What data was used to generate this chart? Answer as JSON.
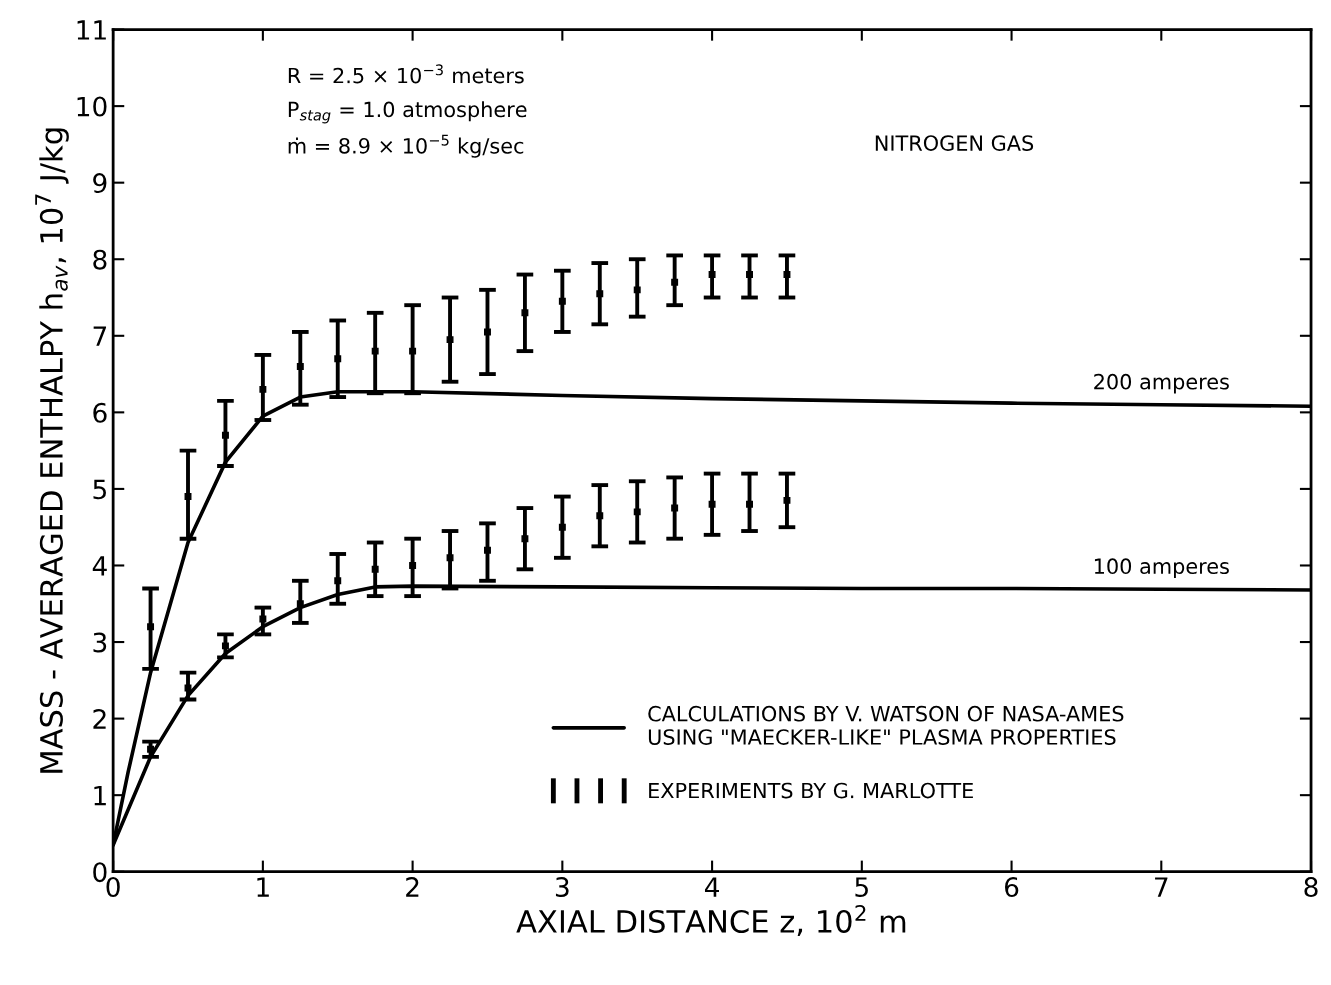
{
  "chart_data": {
    "type": "line",
    "xlabel": "AXIAL DISTANCE z, 10$^{2}$ m",
    "ylabel": "MASS - AVERAGED ENTHALPY h$_{av}$, 10$^{7}$ J/kg",
    "xlim": [
      0,
      8
    ],
    "xticks": [
      0,
      1,
      2,
      3,
      4,
      5,
      6,
      7,
      8
    ],
    "ylim": [
      0,
      11
    ],
    "yticks": [
      0,
      1,
      2,
      3,
      4,
      5,
      6,
      7,
      8,
      9,
      10,
      11
    ],
    "grid": false,
    "legend": "bottom right",
    "line_style": "solid",
    "annotations": [
      "R = 2.5 × 10$^{−3}$ meters",
      "P$_{stag}$ = 1.0 atmosphere",
      "ṁ = 8.9 × 10$^{−5}$ kg/sec",
      "NITROGEN GAS",
      {
        "text": "200 amperes",
        "x": 7,
        "y": 6.1
      },
      {
        "text": "100 amperes",
        "x": 7,
        "y": 3.69
      }
    ],
    "series": [
      {
        "type": "line",
        "name": "CALCULATIONS BY V. WATSON OF NASA-AMES\nUSING \"MAECKER-LIKE\" PLASMA PROPERTIES",
        "color": "#000000",
        "marker": "none",
        "x": [
          0,
          0.1,
          0.25,
          0.5,
          0.75,
          1.0,
          1.25,
          1.5,
          2,
          3,
          4,
          5,
          6,
          7,
          8
        ],
        "values": [
          0.35,
          1.3,
          2.6,
          4.3,
          5.35,
          5.95,
          6.2,
          6.27,
          6.27,
          6.22,
          6.18,
          6.15,
          6.12,
          6.1,
          6.08
        ]
      },
      {
        "type": "line",
        "color": "#000000",
        "marker": "none",
        "x": [
          0,
          0.25,
          0.5,
          0.75,
          1.0,
          1.25,
          1.5,
          1.75,
          2,
          3,
          4,
          5,
          6,
          7,
          8
        ],
        "values": [
          0.35,
          1.5,
          2.3,
          2.85,
          3.2,
          3.45,
          3.62,
          3.72,
          3.73,
          3.72,
          3.71,
          3.7,
          3.7,
          3.69,
          3.68
        ]
      },
      {
        "type": "scatter",
        "name": "EXPERIMENTS BY G. MARLOTTE",
        "color": "#000000",
        "marker": "square",
        "x": [
          0.25,
          0.5,
          0.75,
          1.0,
          1.25,
          1.5,
          1.75,
          2.0,
          2.25,
          2.5,
          2.75,
          3.0,
          3.25,
          3.5,
          3.75,
          4.0,
          4.25,
          4.5
        ],
        "values": [
          3.2,
          4.9,
          5.7,
          6.3,
          6.6,
          6.7,
          6.8,
          6.8,
          6.95,
          7.05,
          7.3,
          7.45,
          7.55,
          7.6,
          7.7,
          7.8,
          7.8,
          7.8
        ],
        "errors": [
          [
            2.65,
            3.7
          ],
          [
            4.35,
            5.5
          ],
          [
            5.3,
            6.15
          ],
          [
            5.9,
            6.75
          ],
          [
            6.1,
            7.05
          ],
          [
            6.2,
            7.2
          ],
          [
            6.25,
            7.3
          ],
          [
            6.25,
            7.4
          ],
          [
            6.4,
            7.5
          ],
          [
            6.5,
            7.6
          ],
          [
            6.8,
            7.8
          ],
          [
            7.05,
            7.85
          ],
          [
            7.15,
            7.95
          ],
          [
            7.25,
            8.0
          ],
          [
            7.4,
            8.05
          ],
          [
            7.5,
            8.05
          ],
          [
            7.5,
            8.05
          ],
          [
            7.5,
            8.05
          ]
        ]
      },
      {
        "type": "scatter",
        "color": "#000000",
        "marker": "square",
        "x": [
          0.25,
          0.5,
          0.75,
          1.0,
          1.25,
          1.5,
          1.75,
          2.0,
          2.25,
          2.5,
          2.75,
          3.0,
          3.25,
          3.5,
          3.75,
          4.0,
          4.25,
          4.5
        ],
        "values": [
          1.6,
          2.4,
          2.95,
          3.3,
          3.5,
          3.8,
          3.95,
          4.0,
          4.1,
          4.2,
          4.35,
          4.5,
          4.65,
          4.7,
          4.75,
          4.8,
          4.8,
          4.85
        ],
        "errors": [
          [
            1.5,
            1.7
          ],
          [
            2.25,
            2.6
          ],
          [
            2.8,
            3.1
          ],
          [
            3.1,
            3.45
          ],
          [
            3.25,
            3.8
          ],
          [
            3.5,
            4.15
          ],
          [
            3.6,
            4.3
          ],
          [
            3.6,
            4.35
          ],
          [
            3.7,
            4.45
          ],
          [
            3.8,
            4.55
          ],
          [
            3.95,
            4.75
          ],
          [
            4.1,
            4.9
          ],
          [
            4.25,
            5.05
          ],
          [
            4.3,
            5.1
          ],
          [
            4.35,
            5.15
          ],
          [
            4.4,
            5.2
          ],
          [
            4.45,
            5.2
          ],
          [
            4.5,
            5.2
          ]
        ]
      }
    ]
  }
}
